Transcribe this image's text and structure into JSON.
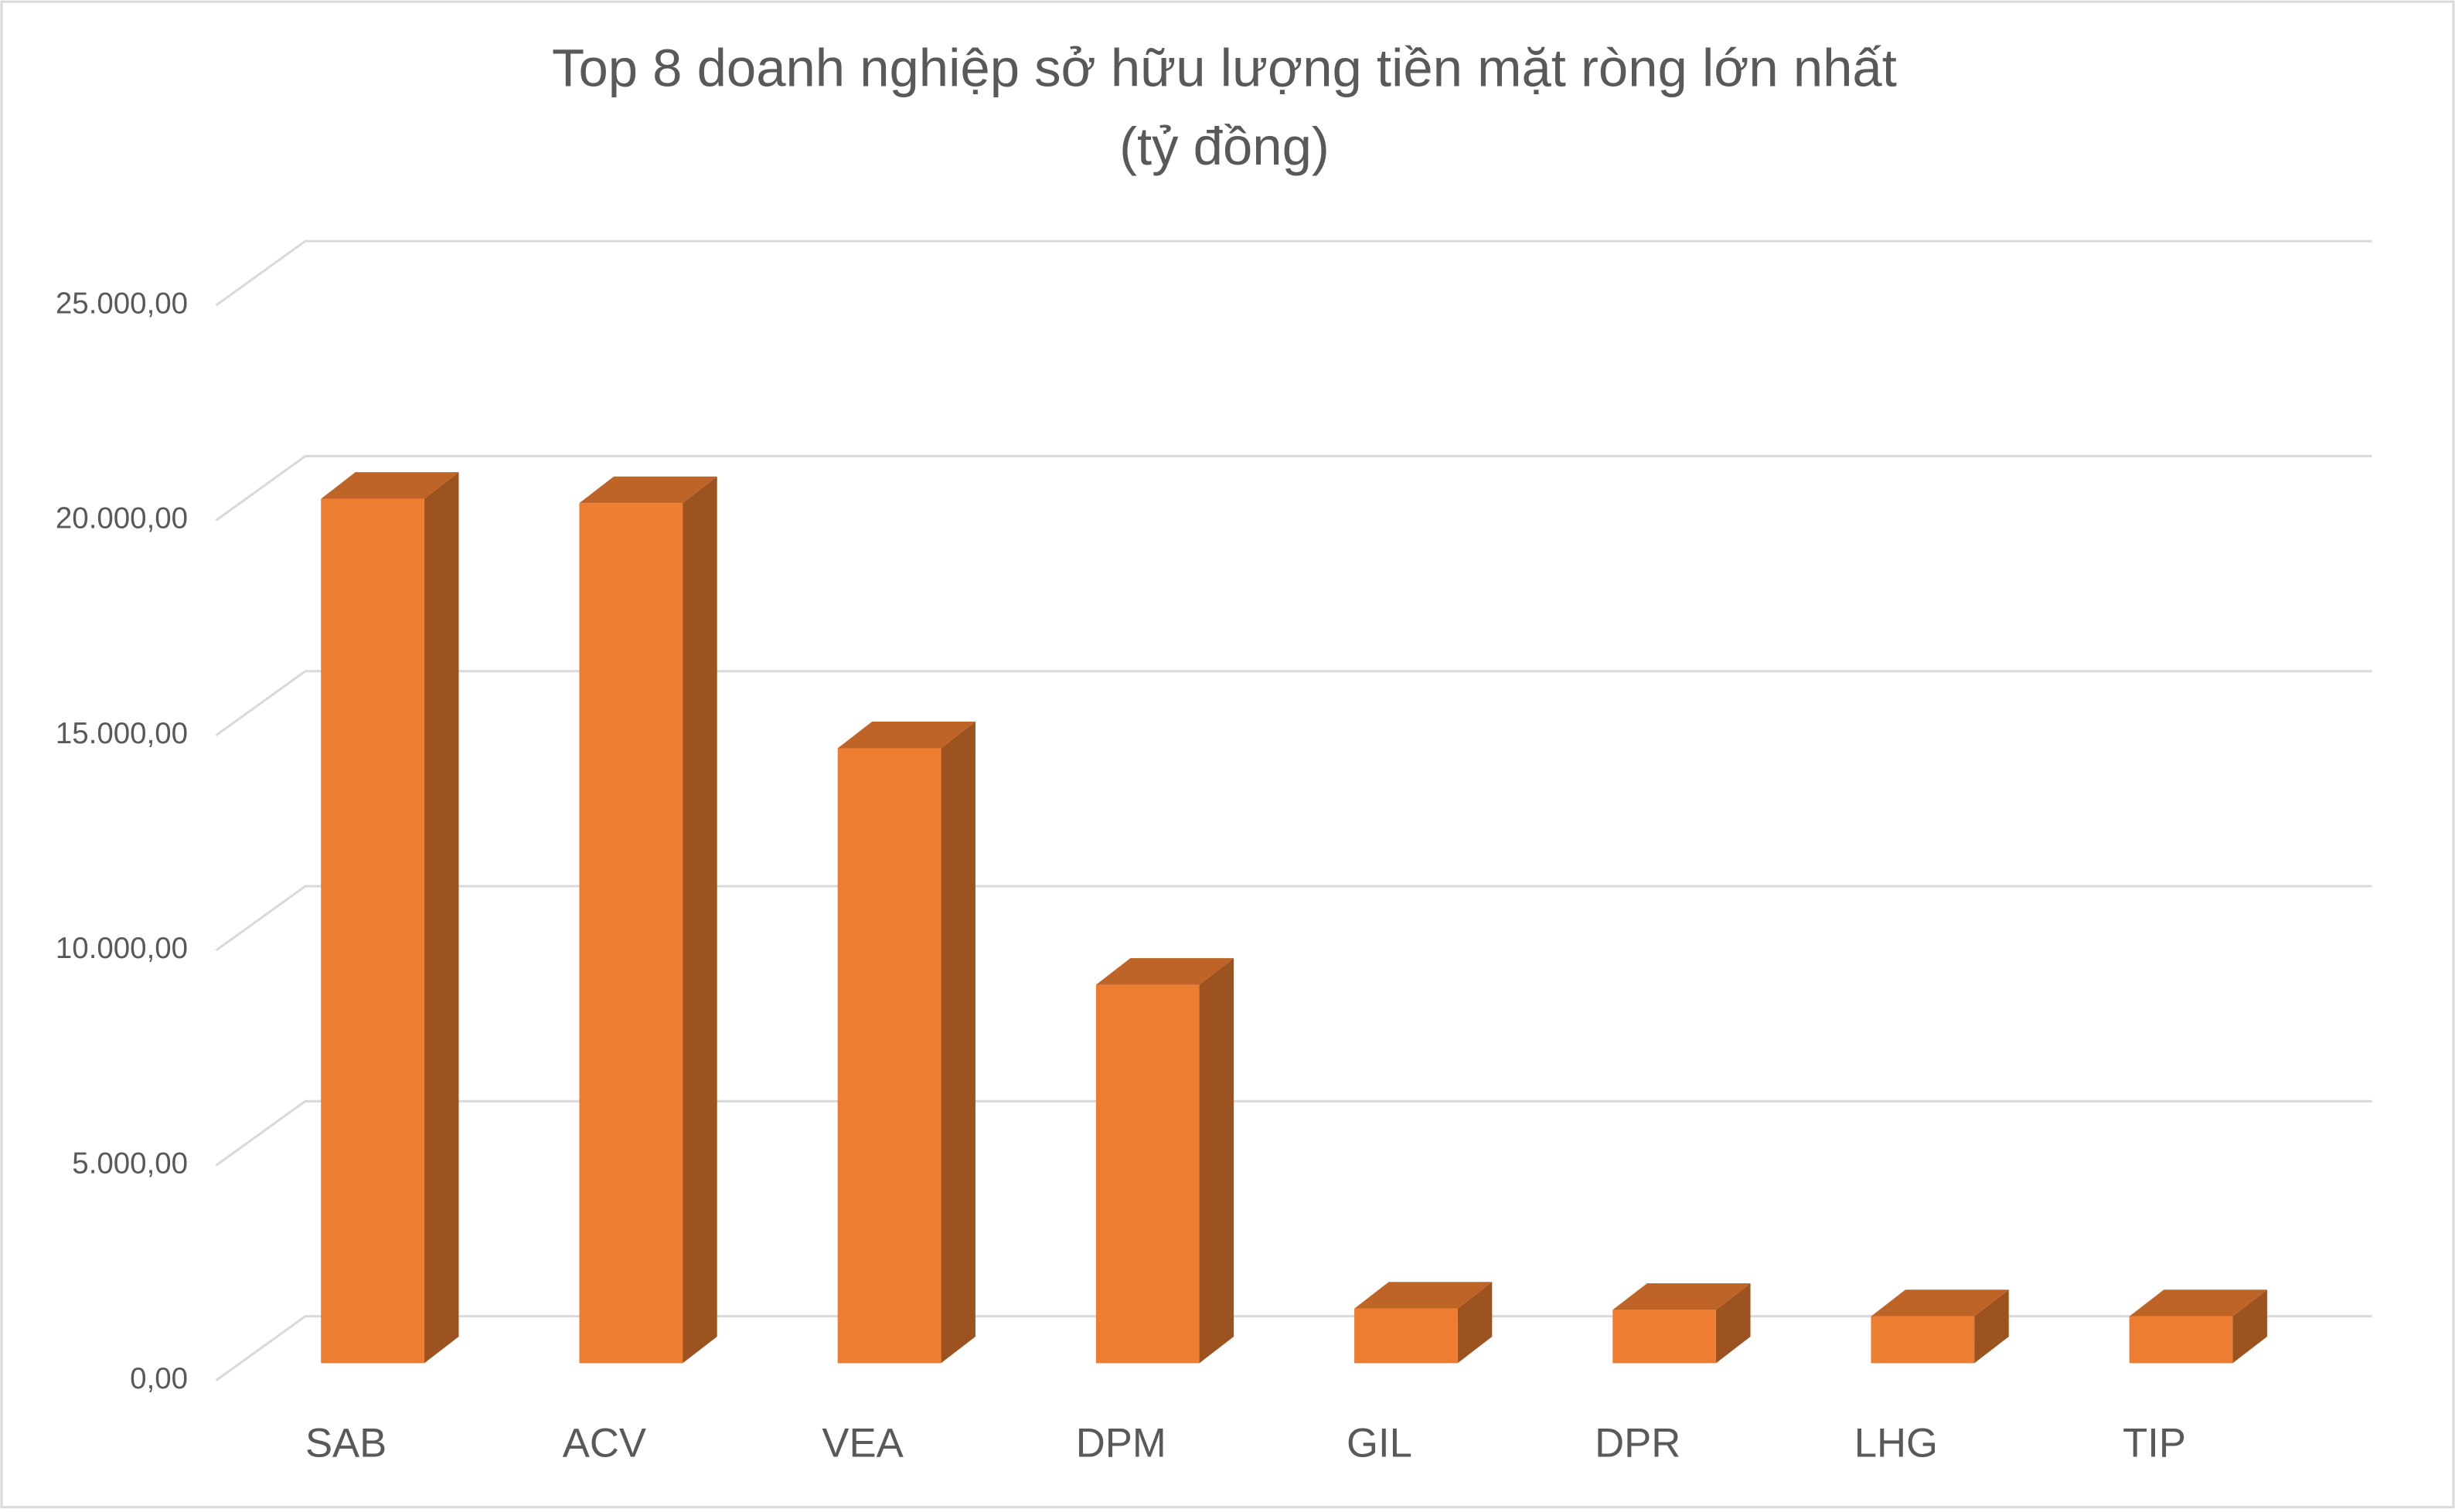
{
  "chart_data": {
    "type": "bar3d",
    "title": "Top 8 doanh nghiệp sở hữu lượng tiền mặt ròng lớn nhất",
    "subtitle": "(tỷ đồng)",
    "categories": [
      "SAB",
      "ACV",
      "VEA",
      "DPM",
      "GIL",
      "DPR",
      "LHG",
      "TIP"
    ],
    "values": [
      20100,
      20000,
      14300,
      8800,
      1270,
      1240,
      1090,
      1090
    ],
    "color": "#ed7d31",
    "ylim": [
      0,
      25000
    ],
    "yticks": [
      {
        "value": 0,
        "label": "0,00"
      },
      {
        "value": 5000,
        "label": "5.000,00"
      },
      {
        "value": 10000,
        "label": "10.000,00"
      },
      {
        "value": 15000,
        "label": "15.000,00"
      },
      {
        "value": 20000,
        "label": "20.000,00"
      },
      {
        "value": 25000,
        "label": "25.000,00"
      }
    ],
    "grid": true
  }
}
